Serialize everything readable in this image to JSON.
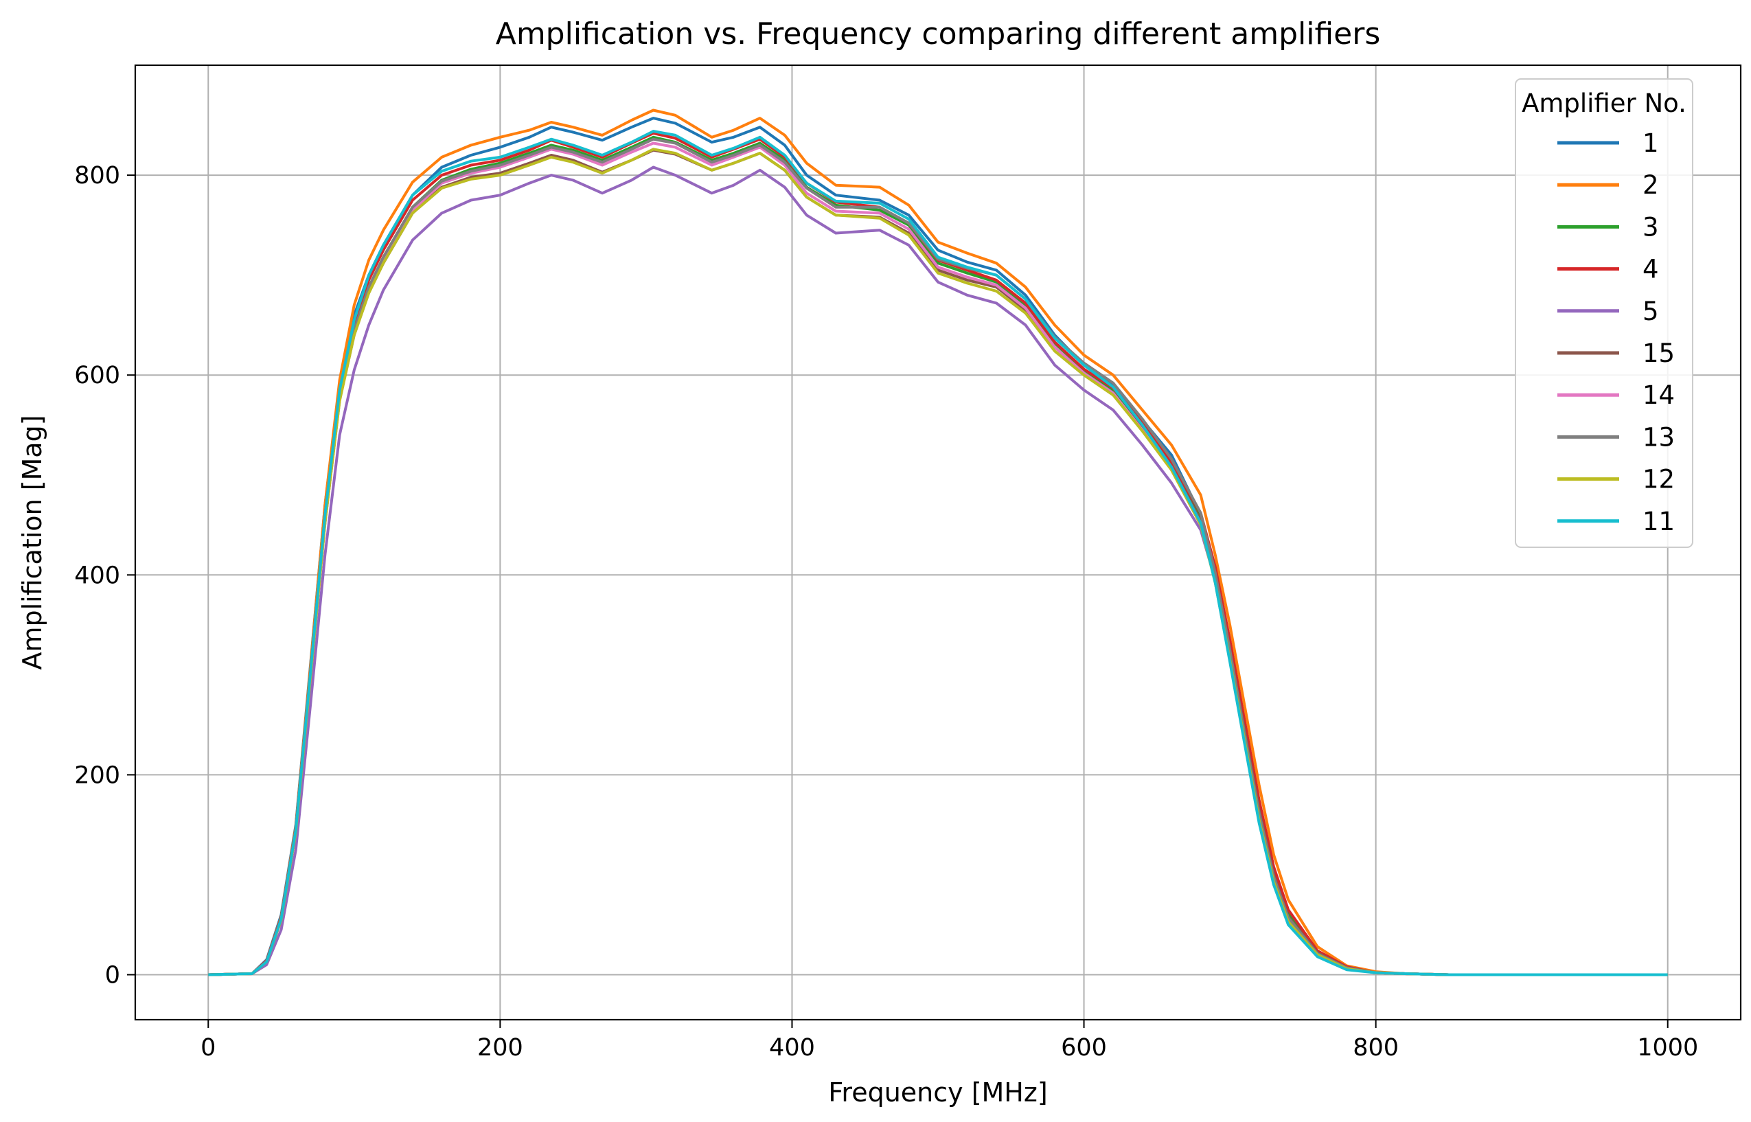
{
  "chart_data": {
    "type": "line",
    "title": "Amplification vs. Frequency comparing different amplifiers",
    "xlabel": "Frequency [MHz]",
    "ylabel": "Amplification [Mag]",
    "xlim": [
      -50,
      1050
    ],
    "ylim": [
      -45,
      910
    ],
    "xticks": [
      0,
      200,
      400,
      600,
      800,
      1000
    ],
    "yticks": [
      0,
      200,
      400,
      600,
      800
    ],
    "grid": true,
    "legend": {
      "title": "Amplifier No.",
      "placement": "top-right"
    },
    "x": [
      0,
      30,
      40,
      50,
      60,
      70,
      80,
      90,
      100,
      110,
      120,
      140,
      160,
      180,
      200,
      220,
      235,
      250,
      270,
      290,
      305,
      320,
      345,
      360,
      378,
      395,
      410,
      430,
      460,
      480,
      500,
      520,
      540,
      560,
      580,
      600,
      620,
      640,
      660,
      680,
      690,
      700,
      710,
      720,
      730,
      740,
      760,
      780,
      800,
      820,
      850,
      900,
      1000
    ],
    "series": [
      {
        "name": "1",
        "color": "#1f77b4",
        "values": [
          0,
          1,
          15,
          60,
          150,
          310,
          470,
          590,
          660,
          700,
          730,
          780,
          808,
          820,
          828,
          838,
          848,
          843,
          835,
          848,
          857,
          852,
          833,
          838,
          848,
          830,
          800,
          780,
          775,
          760,
          725,
          713,
          705,
          680,
          640,
          610,
          590,
          555,
          520,
          460,
          400,
          320,
          240,
          160,
          100,
          60,
          22,
          7,
          2,
          1,
          0,
          0,
          0
        ]
      },
      {
        "name": "2",
        "color": "#ff7f0e",
        "values": [
          0,
          1,
          14,
          58,
          148,
          308,
          470,
          595,
          670,
          715,
          745,
          793,
          818,
          830,
          838,
          845,
          853,
          848,
          840,
          855,
          865,
          860,
          838,
          845,
          857,
          840,
          812,
          790,
          788,
          770,
          733,
          722,
          712,
          688,
          650,
          620,
          600,
          565,
          530,
          480,
          420,
          350,
          270,
          190,
          120,
          75,
          28,
          9,
          3,
          1,
          0,
          0,
          0
        ]
      },
      {
        "name": "3",
        "color": "#2ca02c",
        "values": [
          0,
          1,
          13,
          56,
          145,
          300,
          455,
          578,
          645,
          688,
          718,
          768,
          795,
          806,
          812,
          822,
          830,
          825,
          815,
          828,
          838,
          833,
          815,
          822,
          832,
          815,
          788,
          770,
          765,
          750,
          712,
          702,
          693,
          670,
          632,
          605,
          585,
          550,
          510,
          460,
          405,
          330,
          250,
          170,
          105,
          62,
          23,
          7,
          2,
          1,
          0,
          0,
          0
        ]
      },
      {
        "name": "4",
        "color": "#d62728",
        "values": [
          0,
          1,
          14,
          57,
          146,
          303,
          460,
          583,
          652,
          695,
          725,
          775,
          800,
          810,
          815,
          825,
          835,
          828,
          818,
          832,
          842,
          837,
          818,
          826,
          836,
          818,
          792,
          773,
          768,
          752,
          715,
          705,
          695,
          672,
          633,
          606,
          587,
          552,
          512,
          462,
          408,
          335,
          255,
          175,
          108,
          65,
          24,
          8,
          2,
          1,
          0,
          0,
          0
        ]
      },
      {
        "name": "5",
        "color": "#9467bd",
        "values": [
          0,
          1,
          10,
          45,
          125,
          270,
          420,
          540,
          605,
          650,
          685,
          735,
          762,
          775,
          780,
          792,
          800,
          795,
          782,
          795,
          808,
          800,
          782,
          790,
          805,
          788,
          760,
          742,
          745,
          730,
          693,
          680,
          672,
          650,
          610,
          585,
          565,
          530,
          492,
          445,
          395,
          320,
          240,
          160,
          95,
          55,
          20,
          6,
          2,
          1,
          0,
          0,
          0
        ]
      },
      {
        "name": "15",
        "color": "#8c564b",
        "values": [
          0,
          1,
          13,
          55,
          143,
          298,
          452,
          575,
          640,
          683,
          712,
          762,
          788,
          798,
          802,
          812,
          820,
          815,
          803,
          815,
          825,
          821,
          805,
          812,
          822,
          805,
          778,
          760,
          758,
          742,
          705,
          695,
          688,
          665,
          628,
          602,
          582,
          546,
          508,
          455,
          400,
          325,
          245,
          165,
          100,
          58,
          22,
          7,
          2,
          1,
          0,
          0,
          0
        ]
      },
      {
        "name": "14",
        "color": "#e377c2",
        "values": [
          0,
          1,
          13,
          55,
          143,
          298,
          452,
          575,
          642,
          685,
          715,
          765,
          792,
          802,
          808,
          818,
          826,
          821,
          810,
          823,
          832,
          828,
          810,
          818,
          828,
          810,
          782,
          764,
          762,
          746,
          708,
          698,
          690,
          667,
          628,
          602,
          582,
          545,
          505,
          452,
          395,
          318,
          238,
          158,
          95,
          55,
          20,
          6,
          2,
          1,
          0,
          0,
          0
        ]
      },
      {
        "name": "13",
        "color": "#7f7f7f",
        "values": [
          0,
          1,
          13,
          55,
          144,
          300,
          455,
          578,
          645,
          688,
          718,
          768,
          794,
          804,
          810,
          820,
          828,
          823,
          813,
          826,
          836,
          832,
          813,
          820,
          830,
          813,
          787,
          768,
          768,
          752,
          716,
          707,
          700,
          676,
          638,
          612,
          592,
          556,
          516,
          462,
          402,
          325,
          242,
          162,
          98,
          57,
          21,
          7,
          2,
          1,
          0,
          0,
          0
        ]
      },
      {
        "name": "12",
        "color": "#bcbd22",
        "values": [
          0,
          1,
          13,
          55,
          143,
          298,
          452,
          574,
          640,
          682,
          712,
          762,
          787,
          796,
          800,
          810,
          818,
          813,
          802,
          815,
          826,
          822,
          805,
          812,
          822,
          805,
          778,
          760,
          757,
          740,
          702,
          692,
          684,
          662,
          624,
          600,
          580,
          544,
          505,
          450,
          392,
          315,
          235,
          155,
          93,
          53,
          20,
          6,
          2,
          1,
          0,
          0,
          0
        ]
      },
      {
        "name": "11",
        "color": "#17becf",
        "values": [
          0,
          1,
          13,
          56,
          145,
          302,
          460,
          585,
          655,
          700,
          730,
          780,
          804,
          814,
          818,
          828,
          836,
          830,
          820,
          833,
          844,
          840,
          820,
          827,
          838,
          820,
          792,
          774,
          772,
          756,
          718,
          708,
          700,
          676,
          637,
          610,
          588,
          550,
          508,
          452,
          392,
          313,
          232,
          152,
          90,
          50,
          18,
          5,
          2,
          1,
          0,
          0,
          0
        ]
      }
    ]
  }
}
